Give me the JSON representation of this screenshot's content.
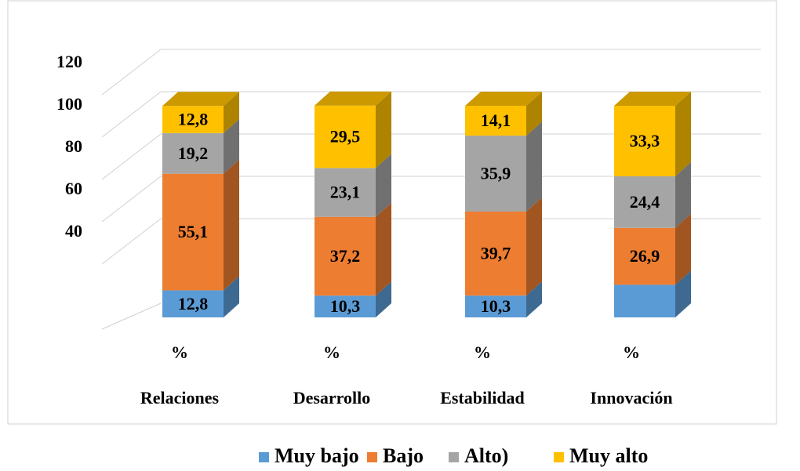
{
  "chart_data": {
    "type": "bar3d_stacked",
    "categories": [
      "Relaciones",
      "Desarrollo",
      "Estabilidad",
      "Innovación"
    ],
    "x_unit_label": "%",
    "series": [
      {
        "name": "Muy bajo",
        "color": "#5b9bd5",
        "values": [
          12.8,
          10.3,
          10.3,
          15.4
        ],
        "value_labels": [
          "12,8",
          "10,3",
          "10,3",
          null
        ]
      },
      {
        "name": "Bajo",
        "color": "#ed7d31",
        "values": [
          55.1,
          37.2,
          39.7,
          26.9
        ],
        "value_labels": [
          "55,1",
          "37,2",
          "39,7",
          "26,9"
        ]
      },
      {
        "name": "Alto)",
        "color": "#a5a5a5",
        "values": [
          19.2,
          23.1,
          35.9,
          24.4
        ],
        "value_labels": [
          "19,2",
          "23,1",
          "35,9",
          "24,4"
        ]
      },
      {
        "name": "Muy alto",
        "color": "#ffc000",
        "values": [
          12.8,
          29.5,
          14.1,
          33.3
        ],
        "value_labels": [
          "12,8",
          "29,5",
          "14,1",
          "33,3"
        ]
      }
    ],
    "ylim": [
      0,
      120
    ],
    "yticks": [
      40,
      60,
      80,
      100,
      120
    ],
    "grid": true,
    "legend": "bottom"
  }
}
